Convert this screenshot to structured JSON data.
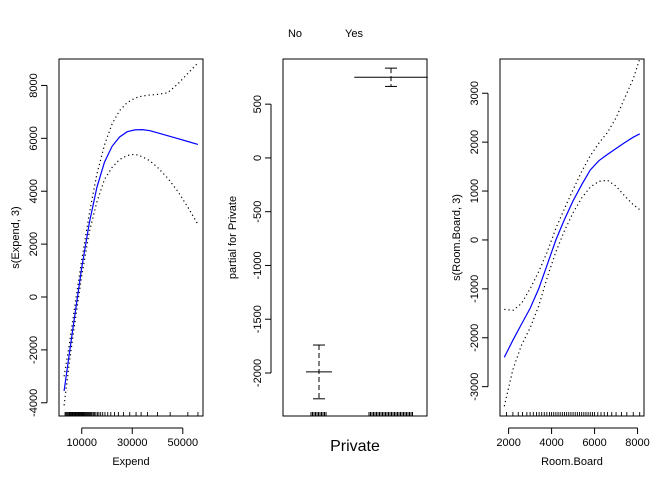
{
  "chart_data": [
    {
      "type": "line",
      "xlabel": "Expend",
      "ylabel": "s(Expend, 3)",
      "xlim": [
        1000,
        58000
      ],
      "ylim": [
        -4500,
        9000
      ],
      "xticks": [
        10000,
        30000,
        50000
      ],
      "xtick_labels": [
        "10000",
        "30000",
        "50000"
      ],
      "yticks": [
        -4000,
        -2000,
        0,
        2000,
        4000,
        6000,
        8000
      ],
      "ytick_labels": [
        "-4000",
        "-2000",
        "0",
        "2000",
        "4000",
        "6000",
        "8000"
      ],
      "series": [
        {
          "role": "fit",
          "color": "#0000ff",
          "style": "solid",
          "x": [
            3000,
            5000,
            7000,
            10000,
            13000,
            16000,
            19000,
            22000,
            25000,
            28000,
            31000,
            34000,
            37000,
            40000,
            44000,
            48000,
            52000,
            56000
          ],
          "y": [
            -3550,
            -2200,
            -850,
            1100,
            2800,
            4150,
            5100,
            5700,
            6050,
            6250,
            6320,
            6330,
            6290,
            6210,
            6100,
            5990,
            5880,
            5770
          ]
        },
        {
          "role": "upper",
          "color": "#000000",
          "style": "dotted",
          "x": [
            3000,
            5000,
            7000,
            10000,
            13000,
            16000,
            19000,
            22000,
            25000,
            28000,
            31000,
            34000,
            37000,
            40000,
            44000,
            48000,
            52000,
            56000
          ],
          "y": [
            -3000,
            -1850,
            -500,
            1400,
            3150,
            4650,
            5750,
            6550,
            7050,
            7350,
            7520,
            7600,
            7640,
            7660,
            7720,
            8050,
            8450,
            8850
          ]
        },
        {
          "role": "lower",
          "color": "#000000",
          "style": "dotted",
          "x": [
            3000,
            5000,
            7000,
            10000,
            13000,
            16000,
            19000,
            22000,
            25000,
            28000,
            31000,
            34000,
            37000,
            40000,
            44000,
            48000,
            52000,
            56000
          ],
          "y": [
            -4100,
            -2550,
            -1150,
            800,
            2450,
            3600,
            4450,
            4900,
            5200,
            5350,
            5400,
            5300,
            5150,
            4900,
            4500,
            4000,
            3400,
            2750
          ]
        }
      ],
      "rug": [
        3400,
        3800,
        4200,
        4600,
        5000,
        5300,
        5600,
        5900,
        6200,
        6500,
        6800,
        7100,
        7400,
        7700,
        8000,
        8300,
        8600,
        8900,
        9200,
        9500,
        9800,
        10100,
        10400,
        10700,
        11000,
        11300,
        11700,
        12100,
        12500,
        12900,
        13300,
        13700,
        14100,
        14600,
        15100,
        15600,
        16200,
        16800,
        17500,
        18300,
        19200,
        20300,
        21500,
        23000,
        24500,
        26500,
        29000,
        31500,
        33500,
        36000,
        40000,
        45000,
        52000,
        56000
      ]
    },
    {
      "type": "errorbar",
      "xlabel": "Private",
      "ylabel": "partial for Private",
      "categories": [
        "No",
        "Yes"
      ],
      "values": [
        -1990,
        750
      ],
      "upper": [
        -1740,
        835
      ],
      "lower": [
        -2240,
        665
      ],
      "ylim": [
        -2400,
        920
      ],
      "yticks": [
        -2000,
        -1500,
        -1000,
        -500,
        0,
        500
      ],
      "ytick_labels": [
        "-2000",
        "-1500",
        "-1000",
        "-500",
        "0",
        "500"
      ]
    },
    {
      "type": "line",
      "xlabel": "Room.Board",
      "ylabel": "s(Room.Board, 3)",
      "xlim": [
        1600,
        8300
      ],
      "ylim": [
        -3600,
        3700
      ],
      "xticks": [
        2000,
        4000,
        6000,
        8000
      ],
      "xtick_labels": [
        "2000",
        "4000",
        "6000",
        "8000"
      ],
      "yticks": [
        -3000,
        -2000,
        -1000,
        0,
        1000,
        2000,
        3000
      ],
      "ytick_labels": [
        "-3000",
        "-2000",
        "-1000",
        "0",
        "1000",
        "2000",
        "3000"
      ],
      "series": [
        {
          "role": "fit",
          "color": "#0000ff",
          "style": "solid",
          "x": [
            1800,
            2200,
            2600,
            3000,
            3400,
            3800,
            4200,
            4600,
            5000,
            5400,
            5800,
            6200,
            6600,
            7000,
            7400,
            7800,
            8100
          ],
          "y": [
            -2400,
            -2050,
            -1720,
            -1400,
            -1000,
            -500,
            0,
            420,
            800,
            1130,
            1430,
            1620,
            1750,
            1870,
            1990,
            2100,
            2170
          ]
        },
        {
          "role": "upper",
          "color": "#000000",
          "style": "dotted",
          "x": [
            1800,
            2200,
            2600,
            3000,
            3400,
            3800,
            4200,
            4600,
            5000,
            5400,
            5800,
            6200,
            6600,
            7000,
            7400,
            7800,
            8100
          ],
          "y": [
            -1420,
            -1440,
            -1300,
            -1000,
            -650,
            -240,
            240,
            640,
            1030,
            1400,
            1720,
            1980,
            2200,
            2500,
            2900,
            3300,
            3700
          ]
        },
        {
          "role": "lower",
          "color": "#000000",
          "style": "dotted",
          "x": [
            1800,
            2200,
            2600,
            3000,
            3400,
            3800,
            4200,
            4600,
            5000,
            5400,
            5800,
            6200,
            6600,
            7000,
            7400,
            7800,
            8100
          ],
          "y": [
            -3400,
            -2650,
            -2150,
            -1800,
            -1350,
            -760,
            -240,
            190,
            560,
            860,
            1080,
            1200,
            1220,
            1100,
            900,
            720,
            620
          ]
        }
      ],
      "rug": [
        1900,
        2200,
        2450,
        2650,
        2850,
        3000,
        3150,
        3300,
        3420,
        3540,
        3660,
        3780,
        3900,
        4000,
        4100,
        4200,
        4300,
        4400,
        4500,
        4600,
        4700,
        4800,
        4900,
        5000,
        5100,
        5200,
        5300,
        5400,
        5500,
        5600,
        5700,
        5800,
        5900,
        6000,
        6150,
        6300,
        6450,
        6600,
        6800,
        7000,
        7250,
        7500,
        7800,
        8100
      ]
    }
  ]
}
